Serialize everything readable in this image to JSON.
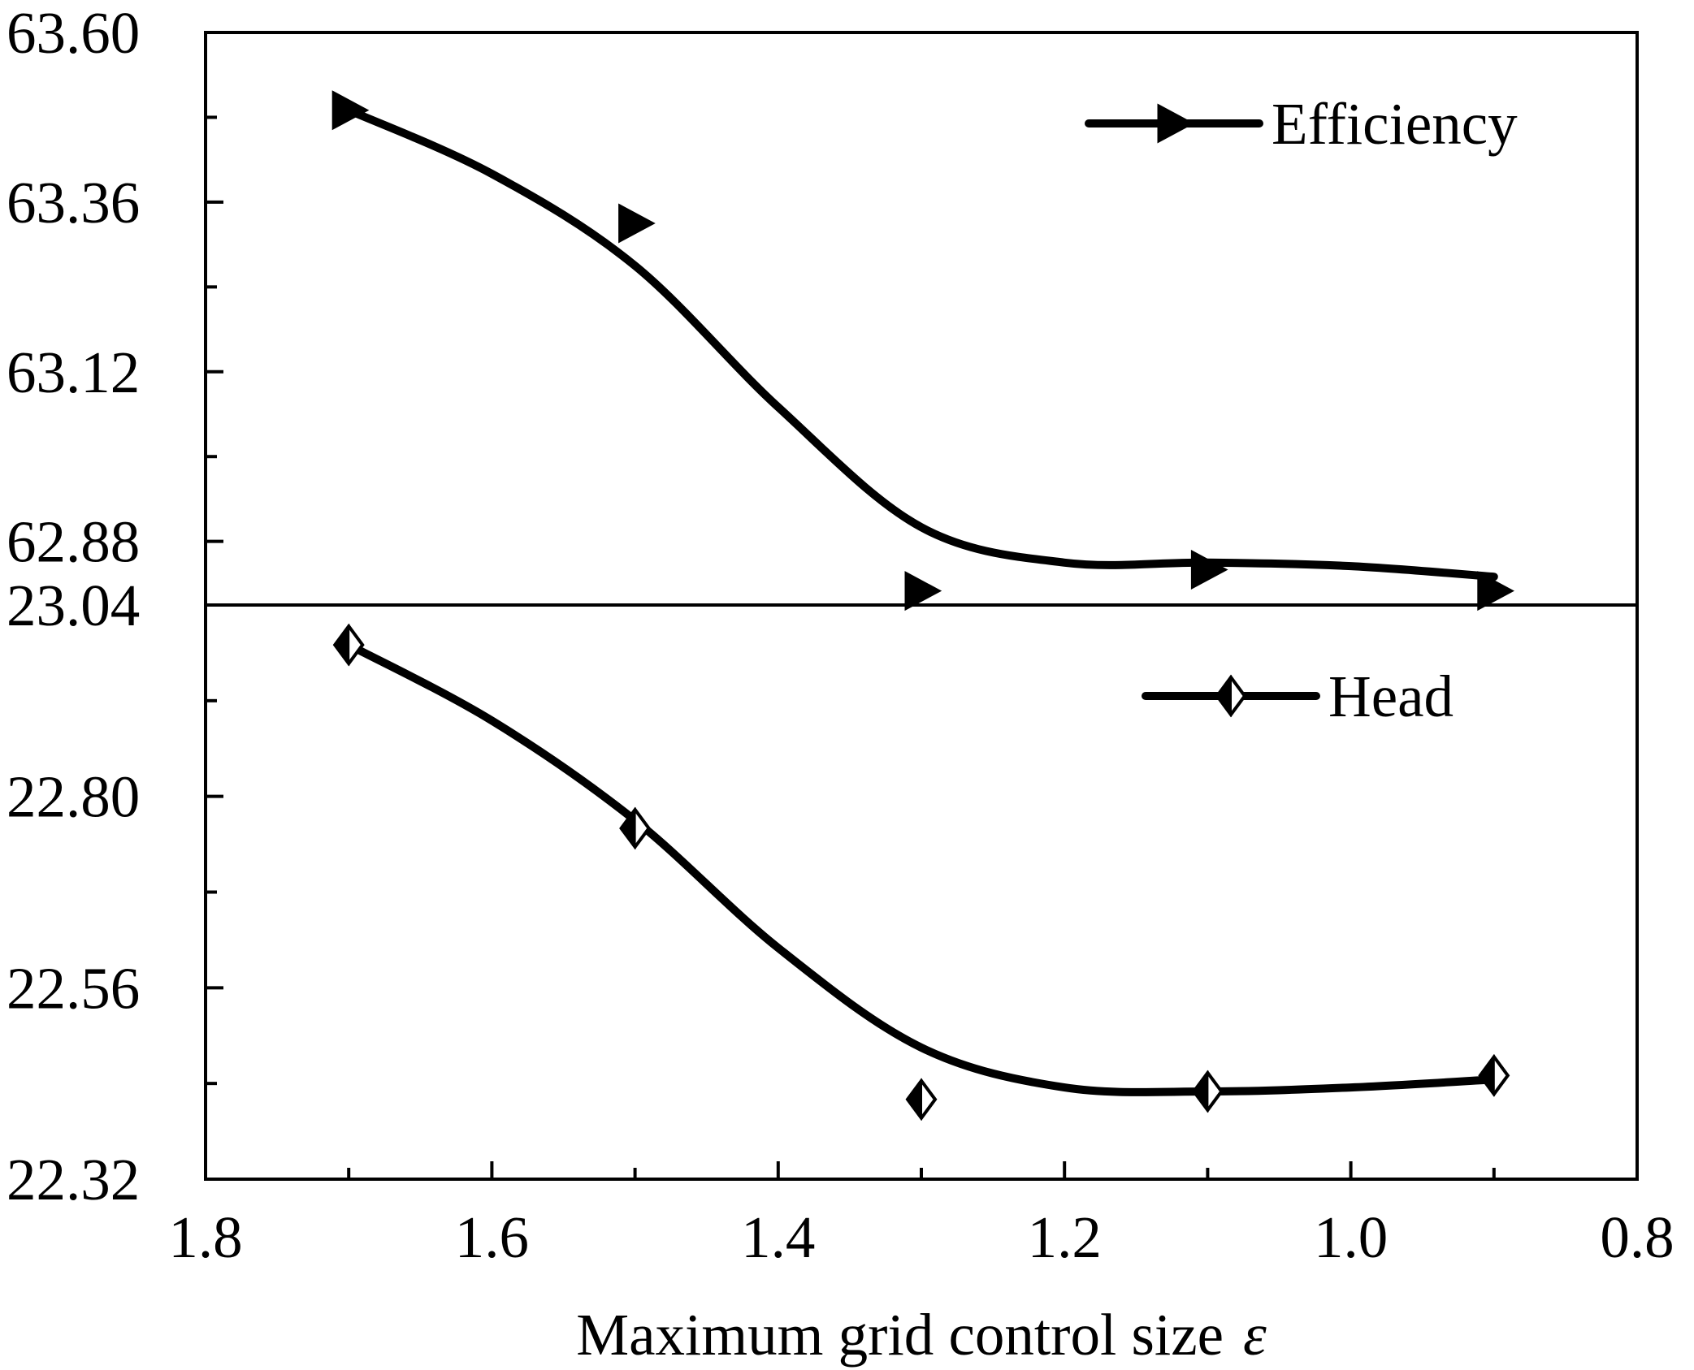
{
  "chart_data": {
    "type": "line",
    "layout": "stacked-panels-shared-x",
    "xlabel": "Maximum grid control size",
    "xlabel_symbol": "ε",
    "xlim": [
      1.8,
      0.8
    ],
    "x_reversed": true,
    "xticks": [
      1.8,
      1.6,
      1.4,
      1.2,
      1.0,
      0.8
    ],
    "xtick_labels": [
      "1.8",
      "1.6",
      "1.4",
      "1.2",
      "1.0",
      "0.8"
    ],
    "x": [
      1.7,
      1.5,
      1.3,
      1.1,
      0.9
    ],
    "panels": [
      {
        "id": "top",
        "series": [
          {
            "name": "Efficiency",
            "marker": "triangle-right",
            "values": [
              63.49,
              63.33,
              62.81,
              62.84,
              62.81
            ],
            "curve": [
              [
                1.7,
                63.49
              ],
              [
                1.6,
                63.4
              ],
              [
                1.5,
                63.27
              ],
              [
                1.4,
                63.07
              ],
              [
                1.3,
                62.9
              ],
              [
                1.2,
                62.85
              ],
              [
                1.1,
                62.85
              ],
              [
                1.0,
                62.845
              ],
              [
                0.9,
                62.83
              ]
            ]
          }
        ],
        "ylim": [
          62.79,
          63.6
        ],
        "yticks": [
          62.88,
          63.12,
          63.36,
          63.6
        ],
        "ytick_labels": [
          "62.88",
          "63.12",
          "63.36",
          "63.60"
        ],
        "legend": "top-right"
      },
      {
        "id": "bottom",
        "series": [
          {
            "name": "Head",
            "marker": "half-filled-diamond",
            "values": [
              22.99,
              22.76,
              22.42,
              22.43,
              22.45
            ],
            "curve": [
              [
                1.7,
                22.99
              ],
              [
                1.6,
                22.895
              ],
              [
                1.5,
                22.77
              ],
              [
                1.4,
                22.61
              ],
              [
                1.3,
                22.485
              ],
              [
                1.2,
                22.435
              ],
              [
                1.1,
                22.43
              ],
              [
                1.0,
                22.435
              ],
              [
                0.9,
                22.445
              ]
            ]
          }
        ],
        "ylim": [
          22.32,
          23.04
        ],
        "yticks": [
          22.32,
          22.56,
          22.8,
          23.04
        ],
        "ytick_labels": [
          "22.32",
          "22.56",
          "22.80",
          "23.04"
        ],
        "legend": "top-right"
      }
    ]
  }
}
